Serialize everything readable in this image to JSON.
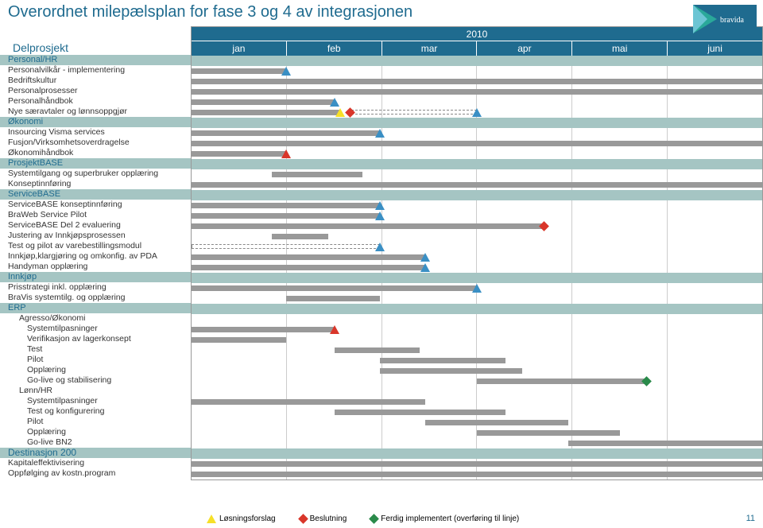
{
  "title": "Overordnet milepælsplan for fase 3 og 4 av integrasjonen",
  "year": "2010",
  "delprosjekt_label": "Delprosjekt",
  "months": [
    "jan",
    "feb",
    "mar",
    "apr",
    "mai",
    "juni"
  ],
  "colors": {
    "brand": "#1f6b8f",
    "section_bg": "#a5c5c3",
    "bar": "#999999",
    "tri_yellow": "#f6e028",
    "tri_blue": "#3a8fc4",
    "tri_red": "#d9362a",
    "dia_red": "#d9362a",
    "dia_green": "#2a8a4a",
    "grid": "#cccccc"
  },
  "legend": {
    "losning": "Løsningsforslag",
    "beslutning": "Beslutning",
    "ferdig": "Ferdig implementert (overføring til linje)"
  },
  "page_num": "11",
  "rows": [
    {
      "type": "section",
      "label": "Personal/HR"
    },
    {
      "type": "task",
      "label": "Personalvilkår - implementering",
      "bars": [
        {
          "s": 0,
          "e": 16.6
        }
      ],
      "markers": [
        {
          "t": "tri",
          "c": "blue",
          "p": 16.6
        }
      ]
    },
    {
      "type": "task",
      "label": "Bedriftskultur",
      "bars": [
        {
          "s": 0,
          "e": 100
        }
      ]
    },
    {
      "type": "task",
      "label": "Personalprosesser",
      "bars": [
        {
          "s": 0,
          "e": 100
        }
      ]
    },
    {
      "type": "task",
      "label": "Personalhåndbok",
      "bars": [
        {
          "s": 0,
          "e": 25
        }
      ],
      "markers": [
        {
          "t": "tri",
          "c": "blue",
          "p": 25
        }
      ]
    },
    {
      "type": "task",
      "label": "Nye særavtaler og lønnsoppgjør",
      "bars": [
        {
          "s": 0,
          "e": 26
        }
      ],
      "dashed": [
        {
          "s": 28,
          "e": 50
        }
      ],
      "markers": [
        {
          "t": "tri",
          "c": "yellow",
          "p": 26
        },
        {
          "t": "dia",
          "c": "red",
          "p": 28
        },
        {
          "t": "tri",
          "c": "blue",
          "p": 50
        }
      ]
    },
    {
      "type": "section",
      "label": "Økonomi"
    },
    {
      "type": "task",
      "label": "Insourcing Visma services",
      "bars": [
        {
          "s": 0,
          "e": 33
        }
      ],
      "markers": [
        {
          "t": "tri",
          "c": "blue",
          "p": 33
        }
      ]
    },
    {
      "type": "task",
      "label": "Fusjon/Virksomhetsoverdragelse",
      "bars": [
        {
          "s": 0,
          "e": 100
        }
      ]
    },
    {
      "type": "task",
      "label": "Økonomihåndbok",
      "bars": [
        {
          "s": 0,
          "e": 16.6
        }
      ],
      "markers": [
        {
          "t": "tri",
          "c": "red",
          "p": 16.6
        }
      ]
    },
    {
      "type": "section",
      "label": "ProsjektBASE"
    },
    {
      "type": "task",
      "label": "Systemtilgang og superbruker opplæring",
      "bars": [
        {
          "s": 14,
          "e": 30
        }
      ]
    },
    {
      "type": "task",
      "label": "Konseptinnføring",
      "bars": [
        {
          "s": 0,
          "e": 100
        }
      ]
    },
    {
      "type": "section",
      "label": "ServiceBASE"
    },
    {
      "type": "task",
      "label": "ServiceBASE konseptinnføring",
      "bars": [
        {
          "s": 0,
          "e": 33
        }
      ],
      "markers": [
        {
          "t": "tri",
          "c": "blue",
          "p": 33
        }
      ]
    },
    {
      "type": "task",
      "label": "BraWeb Service Pilot",
      "bars": [
        {
          "s": 0,
          "e": 33
        }
      ],
      "markers": [
        {
          "t": "tri",
          "c": "blue",
          "p": 33
        }
      ]
    },
    {
      "type": "task",
      "label": "ServiceBASE Del 2 evaluering",
      "bars": [
        {
          "s": 0,
          "e": 62
        }
      ],
      "markers": [
        {
          "t": "dia",
          "c": "red",
          "p": 62
        }
      ]
    },
    {
      "type": "task",
      "label": "Justering av Innkjøpsprosessen",
      "bars": [
        {
          "s": 14,
          "e": 24
        }
      ]
    },
    {
      "type": "task",
      "label": "Test og pilot av varebestillingsmodul",
      "dashed": [
        {
          "s": 0,
          "e": 33
        }
      ],
      "markers": [
        {
          "t": "tri",
          "c": "blue",
          "p": 33
        }
      ]
    },
    {
      "type": "task",
      "label": "Innkjøp,klargjøring og omkonfig. av PDA",
      "bars": [
        {
          "s": 0,
          "e": 41
        }
      ],
      "markers": [
        {
          "t": "tri",
          "c": "blue",
          "p": 41
        }
      ]
    },
    {
      "type": "task",
      "label": "Handyman opplæring",
      "bars": [
        {
          "s": 0,
          "e": 41
        }
      ],
      "markers": [
        {
          "t": "tri",
          "c": "blue",
          "p": 41
        }
      ]
    },
    {
      "type": "section",
      "label": "Innkjøp"
    },
    {
      "type": "task",
      "label": "Prisstrategi inkl. opplæring",
      "bars": [
        {
          "s": 0,
          "e": 50
        }
      ],
      "markers": [
        {
          "t": "tri",
          "c": "blue",
          "p": 50
        }
      ]
    },
    {
      "type": "task",
      "label": "BraVis systemtilg. og opplæring",
      "bars": [
        {
          "s": 16.6,
          "e": 33
        }
      ]
    },
    {
      "type": "section",
      "label": "ERP"
    },
    {
      "type": "sub",
      "label": "Agresso/Økonomi"
    },
    {
      "type": "sub2",
      "label": "Systemtilpasninger",
      "bars": [
        {
          "s": 0,
          "e": 25
        }
      ],
      "markers": [
        {
          "t": "tri",
          "c": "red",
          "p": 25
        }
      ]
    },
    {
      "type": "sub2",
      "label": "Verifikasjon av lagerkonsept",
      "bars": [
        {
          "s": 0,
          "e": 16.6
        }
      ]
    },
    {
      "type": "sub2",
      "label": "Test",
      "bars": [
        {
          "s": 25,
          "e": 40
        }
      ]
    },
    {
      "type": "sub2",
      "label": "Pilot",
      "bars": [
        {
          "s": 33,
          "e": 55
        }
      ]
    },
    {
      "type": "sub2",
      "label": "Opplæring",
      "bars": [
        {
          "s": 33,
          "e": 58
        }
      ]
    },
    {
      "type": "sub2",
      "label": "Go-live og stabilisering",
      "bars": [
        {
          "s": 50,
          "e": 80
        }
      ],
      "markers": [
        {
          "t": "dia",
          "c": "green",
          "p": 80
        }
      ]
    },
    {
      "type": "sub",
      "label": "Lønn/HR"
    },
    {
      "type": "sub2",
      "label": "Systemtilpasninger",
      "bars": [
        {
          "s": 0,
          "e": 41
        }
      ]
    },
    {
      "type": "sub2",
      "label": "Test og konfigurering",
      "bars": [
        {
          "s": 25,
          "e": 55
        }
      ]
    },
    {
      "type": "sub2",
      "label": "Pilot",
      "bars": [
        {
          "s": 41,
          "e": 66
        }
      ]
    },
    {
      "type": "sub2",
      "label": "Opplæring",
      "bars": [
        {
          "s": 50,
          "e": 75
        }
      ]
    },
    {
      "type": "sub2",
      "label": "Go-live BN2",
      "bars": [
        {
          "s": 66,
          "e": 100
        }
      ]
    },
    {
      "type": "dest",
      "label": "Destinasjon 200"
    },
    {
      "type": "task",
      "label": "Kapitaleffektivisering",
      "bars": [
        {
          "s": 0,
          "e": 100
        }
      ]
    },
    {
      "type": "task",
      "label": "Oppfølging av kostn.program",
      "bars": [
        {
          "s": 0,
          "e": 100
        }
      ]
    }
  ]
}
